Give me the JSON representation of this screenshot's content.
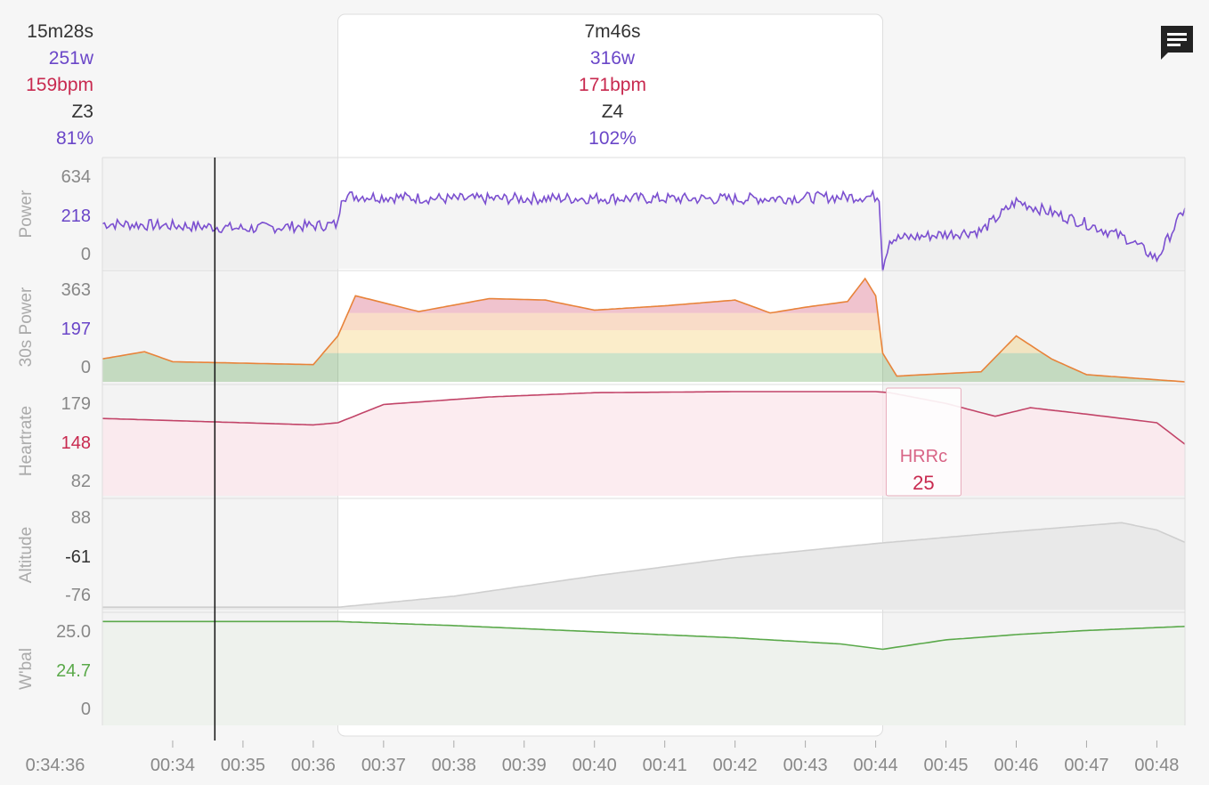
{
  "summary": {
    "left": {
      "duration": "15m28s",
      "power": "251w",
      "heartrate": "159bpm",
      "zone": "Z3",
      "percent": "81%"
    },
    "selection": {
      "duration": "7m46s",
      "power": "316w",
      "heartrate": "171bpm",
      "zone": "Z4",
      "percent": "102%"
    }
  },
  "icons": {
    "comment": "comment-icon"
  },
  "colors": {
    "power": "#7b4fd0",
    "hr": "#c24468",
    "wbal": "#5aa94a",
    "altitude": "#cfcfcf",
    "zone_green": "#4c9a3c",
    "zone_yellow": "#f0c040",
    "zone_orange": "#e8833a",
    "zone_red": "#c8294f"
  },
  "chart_data": {
    "type": "line",
    "x_ticks": [
      "0:34:36",
      "00:34",
      "00:35",
      "00:36",
      "00:37",
      "00:38",
      "00:39",
      "00:40",
      "00:41",
      "00:42",
      "00:43",
      "00:44",
      "00:45",
      "00:46",
      "00:47",
      "00:48"
    ],
    "x_range_minutes": [
      33,
      48.4
    ],
    "cursor_minute": 34.6,
    "selection_minutes": [
      36.35,
      44.1
    ],
    "panels": [
      {
        "name": "Power",
        "ticks": [
          "634",
          "218",
          "0"
        ],
        "current": "218",
        "ylim": [
          0,
          634
        ],
        "points": [
          [
            33,
            275
          ],
          [
            34.6,
            255
          ],
          [
            35,
            245
          ],
          [
            36,
            262
          ],
          [
            36.35,
            270
          ],
          [
            36.4,
            445
          ],
          [
            38,
            425
          ],
          [
            40,
            430
          ],
          [
            42,
            425
          ],
          [
            43.9,
            440
          ],
          [
            44.05,
            440
          ],
          [
            44.1,
            10
          ],
          [
            44.2,
            180
          ],
          [
            45.5,
            230
          ],
          [
            46,
            410
          ],
          [
            47,
            275
          ],
          [
            47.6,
            180
          ],
          [
            48,
            60
          ],
          [
            48.4,
            370
          ]
        ]
      },
      {
        "name": "30s Power",
        "ticks": [
          "363",
          "197",
          "0"
        ],
        "current": "197",
        "ylim": [
          0,
          363
        ],
        "points": [
          [
            33,
            80
          ],
          [
            33.6,
            105
          ],
          [
            34,
            70
          ],
          [
            36,
            60
          ],
          [
            36.35,
            160
          ],
          [
            36.6,
            300
          ],
          [
            37.5,
            245
          ],
          [
            38.5,
            290
          ],
          [
            39.3,
            285
          ],
          [
            40,
            250
          ],
          [
            41,
            265
          ],
          [
            42,
            285
          ],
          [
            42.5,
            240
          ],
          [
            43,
            260
          ],
          [
            43.6,
            280
          ],
          [
            43.85,
            360
          ],
          [
            44,
            300
          ],
          [
            44.1,
            100
          ],
          [
            44.3,
            20
          ],
          [
            45.5,
            35
          ],
          [
            46,
            160
          ],
          [
            46.5,
            80
          ],
          [
            47,
            25
          ],
          [
            48.4,
            0
          ]
        ],
        "zones": [
          0,
          100,
          180,
          240
        ]
      },
      {
        "name": "Heartrate",
        "ticks": [
          "179",
          "148",
          "82"
        ],
        "current": "148",
        "ylim": [
          82,
          179
        ],
        "points": [
          [
            33,
            154
          ],
          [
            36,
            148
          ],
          [
            36.35,
            150
          ],
          [
            37,
            167
          ],
          [
            38.5,
            174
          ],
          [
            40,
            178
          ],
          [
            42,
            179
          ],
          [
            44,
            179
          ],
          [
            44.2,
            178
          ],
          [
            45,
            168
          ],
          [
            45.7,
            156
          ],
          [
            46.2,
            164
          ],
          [
            47,
            158
          ],
          [
            48,
            150
          ],
          [
            48.4,
            130
          ]
        ],
        "annotation": {
          "label": "HRRc",
          "value": "25"
        }
      },
      {
        "name": "Altitude",
        "ticks": [
          "88",
          "-61",
          "-76"
        ],
        "current": "-61",
        "ylim": [
          -80,
          90
        ],
        "points": [
          [
            33,
            -76
          ],
          [
            36.35,
            -76
          ],
          [
            38,
            -58
          ],
          [
            40,
            -25
          ],
          [
            42,
            5
          ],
          [
            44,
            28
          ],
          [
            46,
            48
          ],
          [
            47.5,
            62
          ],
          [
            48,
            50
          ],
          [
            48.4,
            30
          ]
        ]
      },
      {
        "name": "W'bal",
        "ticks": [
          "25.0",
          "24.7",
          "0"
        ],
        "current": "24.7",
        "ylim": [
          0,
          25.5
        ],
        "points": [
          [
            33,
            25.0
          ],
          [
            36.35,
            25.0
          ],
          [
            38,
            24.0
          ],
          [
            40,
            22.5
          ],
          [
            42,
            21.0
          ],
          [
            43.5,
            19.5
          ],
          [
            44.1,
            18.2
          ],
          [
            45,
            20.5
          ],
          [
            46,
            21.8
          ],
          [
            47,
            22.8
          ],
          [
            48.4,
            23.8
          ]
        ]
      }
    ]
  }
}
